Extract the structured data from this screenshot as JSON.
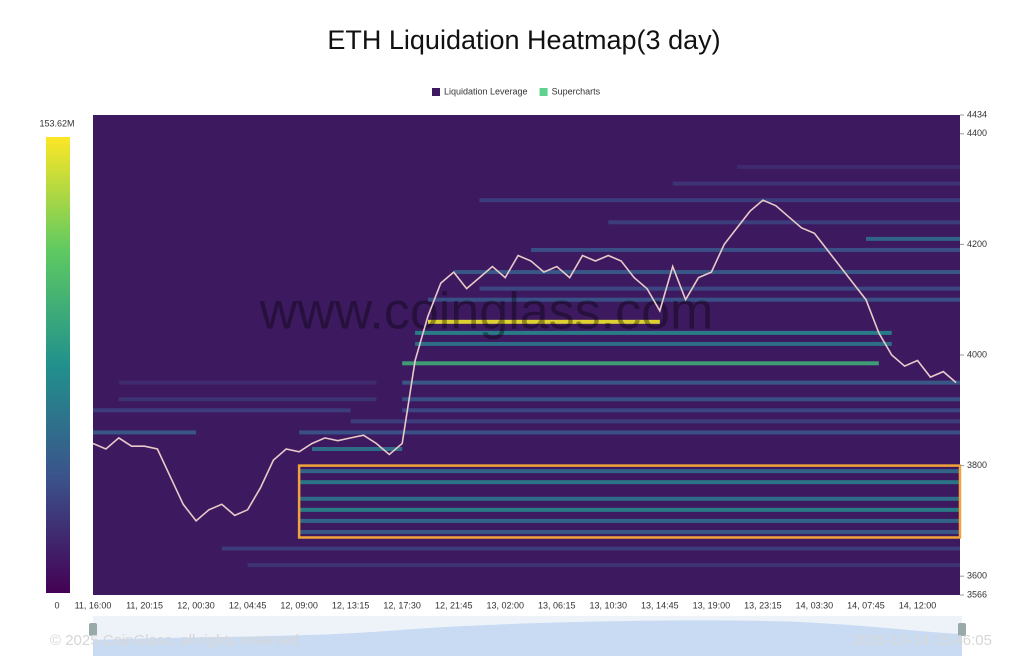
{
  "chart_data": {
    "type": "heatmap",
    "title": "ETH Liquidation Heatmap(3 day)",
    "watermark": "www.coinglass.com",
    "footer_left": "© 2025 CoinGlass, all rights reserved",
    "footer_right": "2025-10-14 15:46:05",
    "categories": [
      "11, 16:00",
      null,
      null,
      null,
      "11, 20:15",
      null,
      null,
      null,
      "12, 00:30",
      null,
      null,
      null,
      "12, 04:45",
      null,
      null,
      null,
      "12, 09:00",
      null,
      null,
      null,
      "12, 13:15",
      null,
      null,
      null,
      "12, 17:30",
      null,
      null,
      null,
      "12, 21:45",
      null,
      null,
      null,
      "13, 02:00",
      null,
      null,
      null,
      "13, 06:15",
      null,
      null,
      null,
      "13, 10:30",
      null,
      null,
      null,
      "13, 14:45",
      null,
      null,
      null,
      "13, 19:00",
      null,
      null,
      null,
      "13, 23:15",
      null,
      null,
      null,
      "14, 03:30",
      null,
      null,
      null,
      "14, 07:45",
      null,
      null,
      null,
      "14, 12:00",
      null,
      null,
      null
    ],
    "series": [
      {
        "name": "Supercharts",
        "color": "#5fd38d",
        "line_color": "#e9c9c9",
        "values": [
          3840,
          3830,
          3850,
          3835,
          3835,
          3830,
          3780,
          3730,
          3700,
          3720,
          3730,
          3710,
          3720,
          3760,
          3810,
          3830,
          3825,
          3840,
          3850,
          3845,
          3850,
          3855,
          3840,
          3820,
          3840,
          3990,
          4070,
          4130,
          4150,
          4120,
          4140,
          4160,
          4140,
          4180,
          4170,
          4150,
          4160,
          4140,
          4180,
          4170,
          4180,
          4170,
          4140,
          4120,
          4080,
          4160,
          4100,
          4140,
          4150,
          4200,
          4230,
          4260,
          4280,
          4270,
          4250,
          4230,
          4220,
          4190,
          4160,
          4130,
          4100,
          4040,
          4000,
          3980,
          3990,
          3960,
          3970,
          3950
        ]
      }
    ],
    "heatmap": {
      "name": "Liquidation Leverage",
      "color": "#3d1a5f",
      "bands": [
        {
          "price": 4060,
          "from": 26,
          "to": 44,
          "value": 150
        },
        {
          "price": 4040,
          "from": 25,
          "to": 62,
          "value": 70
        },
        {
          "price": 4020,
          "from": 25,
          "to": 62,
          "value": 60
        },
        {
          "price": 3985,
          "from": 24,
          "to": 61,
          "value": 95
        },
        {
          "price": 3950,
          "from": 24,
          "to": 67,
          "value": 45
        },
        {
          "price": 3920,
          "from": 24,
          "to": 67,
          "value": 40
        },
        {
          "price": 3900,
          "from": 24,
          "to": 67,
          "value": 35
        },
        {
          "price": 3880,
          "from": 20,
          "to": 67,
          "value": 30
        },
        {
          "price": 3860,
          "from": 16,
          "to": 67,
          "value": 40
        },
        {
          "price": 3830,
          "from": 17,
          "to": 24,
          "value": 60
        },
        {
          "price": 3790,
          "from": 16,
          "to": 67,
          "value": 55
        },
        {
          "price": 3770,
          "from": 16,
          "to": 67,
          "value": 65
        },
        {
          "price": 3740,
          "from": 16,
          "to": 67,
          "value": 60
        },
        {
          "price": 3720,
          "from": 16,
          "to": 67,
          "value": 70
        },
        {
          "price": 3700,
          "from": 16,
          "to": 67,
          "value": 55
        },
        {
          "price": 3680,
          "from": 16,
          "to": 67,
          "value": 45
        },
        {
          "price": 3650,
          "from": 10,
          "to": 67,
          "value": 30
        },
        {
          "price": 3620,
          "from": 12,
          "to": 67,
          "value": 25
        },
        {
          "price": 4100,
          "from": 26,
          "to": 67,
          "value": 40
        },
        {
          "price": 4120,
          "from": 30,
          "to": 67,
          "value": 35
        },
        {
          "price": 4150,
          "from": 28,
          "to": 67,
          "value": 45
        },
        {
          "price": 4190,
          "from": 34,
          "to": 67,
          "value": 40
        },
        {
          "price": 4210,
          "from": 60,
          "to": 67,
          "value": 55
        },
        {
          "price": 4240,
          "from": 40,
          "to": 67,
          "value": 30
        },
        {
          "price": 4280,
          "from": 30,
          "to": 67,
          "value": 30
        },
        {
          "price": 4310,
          "from": 45,
          "to": 67,
          "value": 25
        },
        {
          "price": 4340,
          "from": 50,
          "to": 67,
          "value": 20
        },
        {
          "price": 3900,
          "from": 0,
          "to": 20,
          "value": 30
        },
        {
          "price": 3920,
          "from": 2,
          "to": 22,
          "value": 25
        },
        {
          "price": 3950,
          "from": 2,
          "to": 22,
          "value": 20
        },
        {
          "price": 3860,
          "from": 0,
          "to": 8,
          "value": 45
        }
      ]
    },
    "highlight": {
      "ylim": [
        3670,
        3800
      ],
      "from": 16,
      "color": "#f2a33a"
    },
    "colorbar": {
      "min": 0,
      "max": {
        "value": 153.62,
        "label": "153.62M"
      }
    },
    "ylim": [
      3566,
      4434
    ],
    "yticks": [
      3566,
      3600,
      3800,
      4000,
      4200,
      4400,
      4434
    ]
  }
}
